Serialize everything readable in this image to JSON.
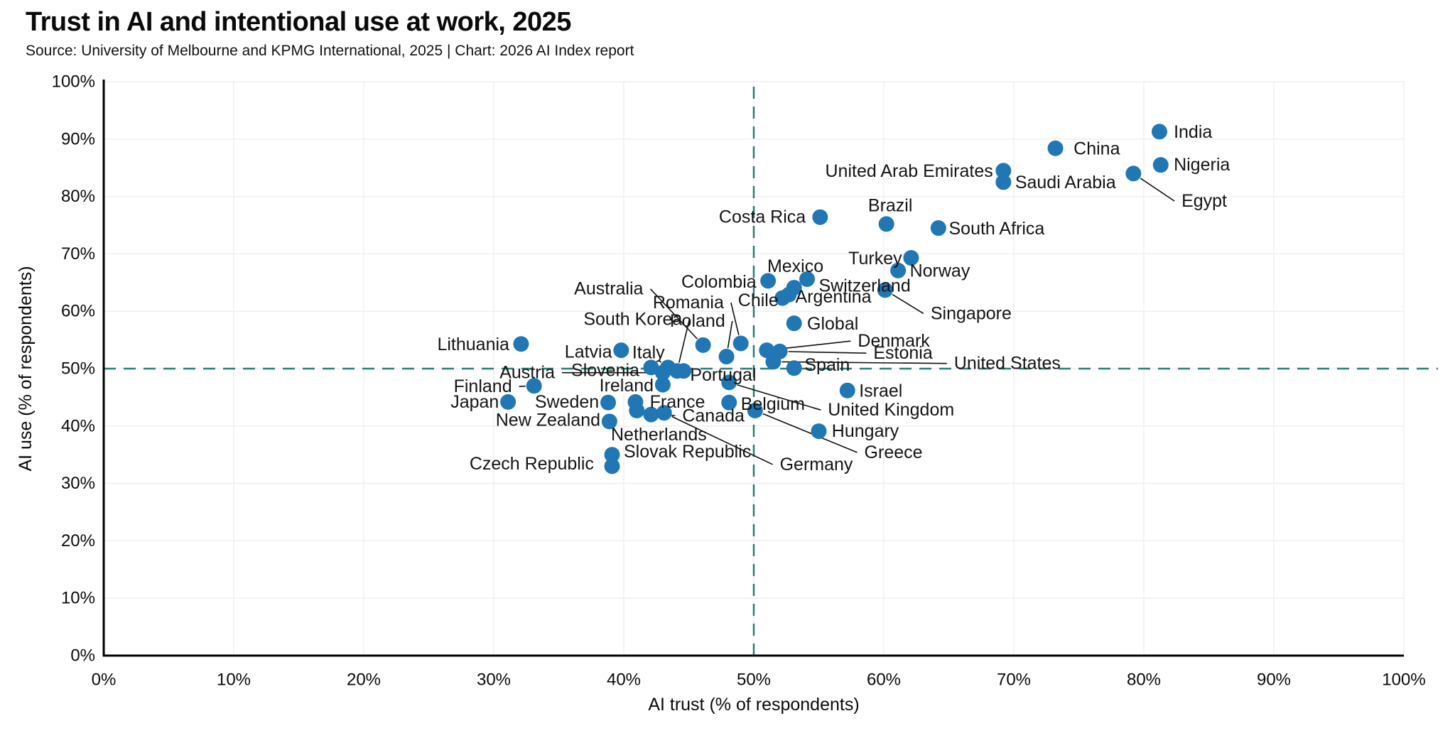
{
  "header": {
    "title": "Trust in AI and intentional use at work, 2025",
    "source": "Source: University of Melbourne and KPMG International, 2025 | Chart: 2026 AI Index report"
  },
  "chart_data": {
    "type": "scatter",
    "title": "Trust in AI and intentional use at work, 2025",
    "xlabel": "AI trust (% of respondents)",
    "ylabel": "AI use (% of respondents)",
    "xlim": [
      0,
      100
    ],
    "ylim": [
      0,
      100
    ],
    "x_tick_labels": [
      "0%",
      "10%",
      "20%",
      "30%",
      "40%",
      "50%",
      "60%",
      "70%",
      "80%",
      "90%",
      "100%"
    ],
    "y_tick_labels": [
      "0%",
      "10%",
      "20%",
      "30%",
      "40%",
      "50%",
      "60%",
      "70%",
      "80%",
      "90%",
      "100%"
    ],
    "grid": true,
    "reference_lines": {
      "x": 50,
      "y": 50
    },
    "colors": {
      "dot": "#2077b4",
      "reference_dashed": "#2b7d74",
      "axis": "#000000",
      "grid": "#efefef",
      "leader": "#111111"
    },
    "points": [
      {
        "country": "India",
        "trust": 81.2,
        "use": 91.3,
        "lx": 82.3,
        "ly": 91.2,
        "align": "s",
        "leader": false
      },
      {
        "country": "China",
        "trust": 73.2,
        "use": 88.4,
        "lx": 74.6,
        "ly": 88.3,
        "align": "s",
        "leader": false
      },
      {
        "country": "Nigeria",
        "trust": 81.3,
        "use": 85.5,
        "lx": 82.3,
        "ly": 85.5,
        "align": "s",
        "leader": false
      },
      {
        "country": "Egypt",
        "trust": 79.2,
        "use": 84.0,
        "lx": 82.9,
        "ly": 79.2,
        "align": "s",
        "leader": true
      },
      {
        "country": "United Arab Emirates",
        "trust": 69.2,
        "use": 84.5,
        "lx": 68.4,
        "ly": 84.4,
        "align": "e",
        "leader": false
      },
      {
        "country": "Saudi Arabia",
        "trust": 69.2,
        "use": 82.5,
        "lx": 70.1,
        "ly": 82.4,
        "align": "s",
        "leader": false
      },
      {
        "country": "Costa Rica",
        "trust": 55.1,
        "use": 76.4,
        "lx": 54.0,
        "ly": 76.4,
        "align": "e",
        "leader": false
      },
      {
        "country": "Brazil",
        "trust": 60.2,
        "use": 75.2,
        "lx": 60.5,
        "ly": 78.4,
        "align": "m",
        "leader": false
      },
      {
        "country": "South Africa",
        "trust": 64.2,
        "use": 74.5,
        "lx": 65.0,
        "ly": 74.4,
        "align": "s",
        "leader": false
      },
      {
        "country": "Turkey",
        "trust": 62.1,
        "use": 69.3,
        "lx": 61.4,
        "ly": 69.2,
        "align": "e",
        "leader": false
      },
      {
        "country": "Norway",
        "trust": 61.1,
        "use": 67.1,
        "lx": 62.0,
        "ly": 67.0,
        "align": "s",
        "leader": false
      },
      {
        "country": "Mexico",
        "trust": 53.1,
        "use": 64.1,
        "lx": 53.2,
        "ly": 67.8,
        "align": "m",
        "leader": false
      },
      {
        "country": "Colombia",
        "trust": 51.1,
        "use": 65.3,
        "lx": 50.2,
        "ly": 65.1,
        "align": "e",
        "leader": false
      },
      {
        "country": "Switzerland",
        "trust": 54.1,
        "use": 65.6,
        "lx": 55.0,
        "ly": 64.4,
        "align": "s",
        "leader": false
      },
      {
        "country": "Argentina",
        "trust": 52.7,
        "use": 62.9,
        "lx": 53.2,
        "ly": 62.5,
        "align": "s",
        "leader": false
      },
      {
        "country": "Chile",
        "trust": 52.2,
        "use": 62.3,
        "lx": 51.9,
        "ly": 61.9,
        "align": "e",
        "leader": false
      },
      {
        "country": "Singapore",
        "trust": 60.1,
        "use": 63.7,
        "lx": 63.6,
        "ly": 59.6,
        "align": "s",
        "leader": true
      },
      {
        "country": "Global",
        "trust": 53.1,
        "use": 57.9,
        "lx": 54.1,
        "ly": 57.8,
        "align": "s",
        "leader": false
      },
      {
        "country": "Romania",
        "trust": 49.0,
        "use": 54.4,
        "lx": 47.7,
        "ly": 61.5,
        "align": "e",
        "leader": true
      },
      {
        "country": "Australia",
        "trust": 46.1,
        "use": 54.1,
        "lx": 41.5,
        "ly": 63.9,
        "align": "e",
        "leader": true
      },
      {
        "country": "Lithuania",
        "trust": 32.1,
        "use": 54.3,
        "lx": 31.2,
        "ly": 54.2,
        "align": "e",
        "leader": false
      },
      {
        "country": "Latvia",
        "trust": 39.8,
        "use": 53.2,
        "lx": 39.1,
        "ly": 52.9,
        "align": "e",
        "leader": false
      },
      {
        "country": "Denmark",
        "trust": 51.0,
        "use": 53.2,
        "lx": 58.0,
        "ly": 54.8,
        "align": "s",
        "leader": true
      },
      {
        "country": "Estonia",
        "trust": 52.0,
        "use": 53.0,
        "lx": 59.2,
        "ly": 52.7,
        "align": "s",
        "leader": true
      },
      {
        "country": "Poland",
        "trust": 47.9,
        "use": 52.1,
        "lx": 47.8,
        "ly": 58.3,
        "align": "e",
        "leader": true
      },
      {
        "country": "United States",
        "trust": 51.5,
        "use": 51.2,
        "lx": 65.4,
        "ly": 50.9,
        "align": "s",
        "leader": true
      },
      {
        "country": "Spain",
        "trust": 53.1,
        "use": 50.1,
        "lx": 53.9,
        "ly": 50.6,
        "align": "s",
        "leader": false
      },
      {
        "country": "Italy",
        "trust": 43.4,
        "use": 50.2,
        "lx": 41.9,
        "ly": 52.8,
        "align": "m",
        "leader": true
      },
      {
        "country": "Slovenia",
        "trust": 42.1,
        "use": 50.2,
        "lx": 41.2,
        "ly": 49.7,
        "align": "e",
        "leader": false
      },
      {
        "country": "South Korea",
        "trust": 44.1,
        "use": 49.6,
        "lx": 44.5,
        "ly": 58.6,
        "align": "e",
        "leader": true
      },
      {
        "country": "Portugal",
        "trust": 44.6,
        "use": 49.6,
        "lx": 45.1,
        "ly": 48.9,
        "align": "s",
        "leader": false
      },
      {
        "country": "Austria",
        "trust": 43.0,
        "use": 49.3,
        "lx": 34.7,
        "ly": 49.3,
        "align": "e",
        "leader": true
      },
      {
        "country": "United Kingdom",
        "trust": 48.1,
        "use": 47.6,
        "lx": 55.7,
        "ly": 42.8,
        "align": "s",
        "leader": true
      },
      {
        "country": "Ireland",
        "trust": 43.0,
        "use": 47.2,
        "lx": 42.3,
        "ly": 47.0,
        "align": "e",
        "leader": false
      },
      {
        "country": "Finland",
        "trust": 33.1,
        "use": 47.0,
        "lx": 31.4,
        "ly": 46.9,
        "align": "e",
        "leader": true
      },
      {
        "country": "Israel",
        "trust": 57.2,
        "use": 46.2,
        "lx": 58.1,
        "ly": 46.1,
        "align": "s",
        "leader": false
      },
      {
        "country": "Belgium",
        "trust": 48.1,
        "use": 44.1,
        "lx": 49.0,
        "ly": 43.8,
        "align": "s",
        "leader": false
      },
      {
        "country": "France",
        "trust": 40.9,
        "use": 44.2,
        "lx": 42.0,
        "ly": 44.2,
        "align": "s",
        "leader": false
      },
      {
        "country": "Sweden",
        "trust": 38.8,
        "use": 44.1,
        "lx": 38.1,
        "ly": 44.2,
        "align": "e",
        "leader": false
      },
      {
        "country": "Japan",
        "trust": 31.1,
        "use": 44.2,
        "lx": 30.4,
        "ly": 44.2,
        "align": "e",
        "leader": false
      },
      {
        "country": "Canada",
        "trust": 41.0,
        "use": 42.7,
        "lx": 44.5,
        "ly": 41.8,
        "align": "s",
        "leader": true
      },
      {
        "country": "Netherlands",
        "trust": 42.1,
        "use": 42.0,
        "lx": 42.7,
        "ly": 38.5,
        "align": "m",
        "leader": false
      },
      {
        "country": "New Zealand",
        "trust": 38.9,
        "use": 40.8,
        "lx": 38.2,
        "ly": 41.0,
        "align": "e",
        "leader": false
      },
      {
        "country": "Greece",
        "trust": 50.1,
        "use": 42.7,
        "lx": 58.5,
        "ly": 35.4,
        "align": "s",
        "leader": true
      },
      {
        "country": "Germany",
        "trust": 43.1,
        "use": 42.3,
        "lx": 52.0,
        "ly": 33.3,
        "align": "s",
        "leader": true
      },
      {
        "country": "Hungary",
        "trust": 55.0,
        "use": 39.1,
        "lx": 56.0,
        "ly": 39.1,
        "align": "s",
        "leader": false
      },
      {
        "country": "Slovak Republic",
        "trust": 39.1,
        "use": 35.0,
        "lx": 40.0,
        "ly": 35.5,
        "align": "s",
        "leader": false
      },
      {
        "country": "Czech Republic",
        "trust": 39.1,
        "use": 33.0,
        "lx": 37.7,
        "ly": 33.4,
        "align": "e",
        "leader": false
      }
    ]
  }
}
